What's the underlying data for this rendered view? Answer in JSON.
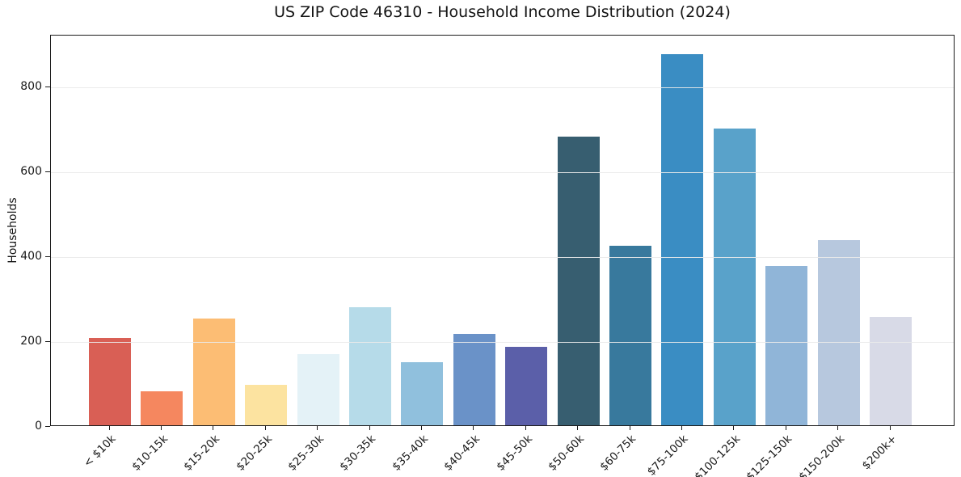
{
  "chart_data": {
    "type": "bar",
    "title": "US ZIP Code 46310 - Household Income Distribution (2024)",
    "xlabel": "",
    "ylabel": "Households",
    "categories": [
      "< $10k",
      "$10-15k",
      "$15-20k",
      "$20-25k",
      "$25-30k",
      "$30-35k",
      "$35-40k",
      "$40-45k",
      "$45-50k",
      "$50-60k",
      "$60-75k",
      "$75-100k",
      "$100-125k",
      "$125-150k",
      "$150-200k",
      "$200k+"
    ],
    "values": [
      205,
      80,
      252,
      96,
      167,
      278,
      149,
      216,
      185,
      680,
      423,
      874,
      700,
      376,
      437,
      255
    ],
    "bar_colors": [
      "#d95f55",
      "#f5875f",
      "#fcbd74",
      "#fce3a0",
      "#e4f2f7",
      "#b6dbe9",
      "#90c0dd",
      "#6a92c8",
      "#5b5fa9",
      "#375e70",
      "#38799d",
      "#3a8dc3",
      "#59a2ca",
      "#90b5d8",
      "#b7c8de",
      "#d8dae7"
    ],
    "yticks": [
      0,
      200,
      400,
      600,
      800
    ],
    "ylim": [
      0,
      922
    ],
    "grid": "horizontal",
    "legend": "none",
    "background_color": "#ffffff",
    "axis_color": "#1c1c1c",
    "grid_color": "#eaeaea",
    "text_color": "#1a1a1a",
    "x_tick_rotation_deg": 45
  }
}
